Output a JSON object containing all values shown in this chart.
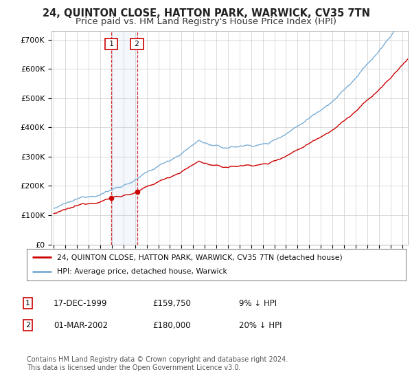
{
  "title": "24, QUINTON CLOSE, HATTON PARK, WARWICK, CV35 7TN",
  "subtitle": "Price paid vs. HM Land Registry's House Price Index (HPI)",
  "ylabel_ticks": [
    "£0",
    "£100K",
    "£200K",
    "£300K",
    "£400K",
    "£500K",
    "£600K",
    "£700K"
  ],
  "ytick_values": [
    0,
    100000,
    200000,
    300000,
    400000,
    500000,
    600000,
    700000
  ],
  "ylim": [
    0,
    730000
  ],
  "xlim_start": 1994.8,
  "xlim_end": 2025.5,
  "hpi_color": "#7aaed6",
  "price_color": "#cc0000",
  "transaction1_year": 1999.96,
  "transaction1_price": 159750,
  "transaction2_year": 2002.17,
  "transaction2_price": 180000,
  "legend_line1": "24, QUINTON CLOSE, HATTON PARK, WARWICK, CV35 7TN (detached house)",
  "legend_line2": "HPI: Average price, detached house, Warwick",
  "table_row1": [
    "1",
    "17-DEC-1999",
    "£159,750",
    "9% ↓ HPI"
  ],
  "table_row2": [
    "2",
    "01-MAR-2002",
    "£180,000",
    "20% ↓ HPI"
  ],
  "footer": "Contains HM Land Registry data © Crown copyright and database right 2024.\nThis data is licensed under the Open Government Licence v3.0.",
  "background_color": "#ffffff",
  "grid_color": "#cccccc"
}
